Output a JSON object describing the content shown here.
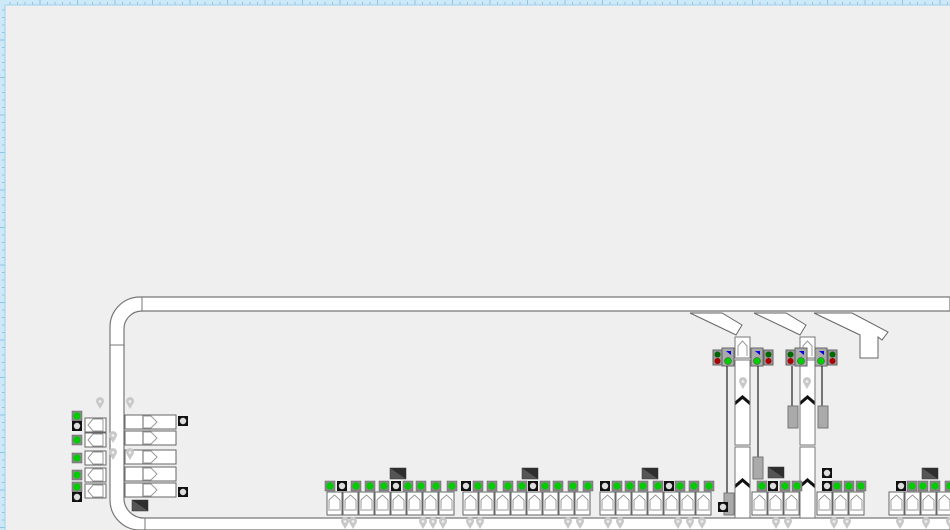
{
  "colors": {
    "background": "#efefef",
    "ruler": "#cde8f7",
    "ruler_tick": "#6aaed6",
    "track_stroke": "#777777",
    "status_green": "#00cc00",
    "status_idle": "#dddddd",
    "signal_blue": "#0000dd",
    "signal_red": "#aa0000",
    "signal_dark_green": "#006600",
    "cylinder": "#aaaaaa",
    "pin": "#c8c8c8",
    "sensor": "#555555"
  },
  "left_indicators": [
    "green",
    "idle",
    "green",
    "green",
    "green",
    "green",
    "idle"
  ],
  "left_right_indicators": [
    "idle",
    "idle"
  ],
  "bottom_indicators": [
    "green",
    "idle",
    "green",
    "green",
    "green",
    "idle",
    "green",
    "green",
    "green",
    "green",
    "idle",
    "green",
    "green",
    "green",
    "green",
    "idle",
    "green",
    "green",
    "green",
    "green",
    "idle",
    "green",
    "green",
    "green",
    "green",
    "idle",
    "green",
    "green",
    "green",
    "idle",
    "green",
    "idle",
    "green",
    "green",
    "idle",
    "idle",
    "green",
    "green",
    "green",
    "idle",
    "green",
    "green",
    "green",
    "green"
  ],
  "signal_heads": [
    {
      "lamp_top": "blue",
      "lamp_bottom": "green",
      "aux_top": "dark-green",
      "aux_bottom": "red"
    },
    {
      "lamp_top": "blue",
      "lamp_bottom": "green",
      "aux_top": "dark-green",
      "aux_bottom": "red"
    },
    {
      "lamp_top": "blue",
      "lamp_bottom": "green",
      "aux_top": "dark-green",
      "aux_bottom": "red"
    },
    {
      "lamp_top": "blue",
      "lamp_bottom": "green",
      "aux_top": "dark-green",
      "aux_bottom": "red"
    }
  ]
}
